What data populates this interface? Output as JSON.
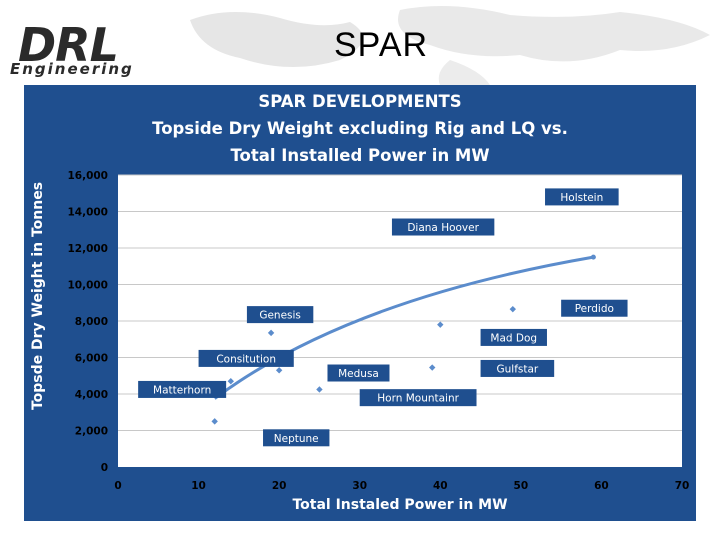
{
  "header": {
    "logo_primary": "DRL",
    "logo_secondary": "Engineering",
    "slide_title": "SPAR"
  },
  "chart_data": {
    "type": "scatter",
    "title_lines": [
      "SPAR  DEVELOPMENTS",
      "Topside Dry Weight excluding Rig and LQ vs.",
      "Total Installed Power in MW"
    ],
    "xlabel": "Total Instaled Power in MW",
    "ylabel": "Topsde Dry Weight in Tonnes",
    "xlim": [
      0,
      70
    ],
    "ylim": [
      0,
      16000
    ],
    "x_ticks": [
      "0",
      "10",
      "20",
      "30",
      "40",
      "50",
      "60",
      "70"
    ],
    "y_ticks": [
      "0",
      "2,000",
      "4,000",
      "6,000",
      "8,000",
      "10,000",
      "12,000",
      "14,000",
      "16,000"
    ],
    "grid": "horizontal",
    "points": [
      {
        "x": 12,
        "y": 4250
      },
      {
        "x": 12,
        "y": 2500
      },
      {
        "x": 14,
        "y": 4700
      },
      {
        "x": 17,
        "y": 5850
      },
      {
        "x": 19,
        "y": 7350
      },
      {
        "x": 20,
        "y": 5750
      },
      {
        "x": 20,
        "y": 5300
      },
      {
        "x": 25,
        "y": 4250
      },
      {
        "x": 39,
        "y": 5450
      },
      {
        "x": 40,
        "y": 7800
      },
      {
        "x": 40,
        "y": 13100
      },
      {
        "x": 49,
        "y": 8650
      },
      {
        "x": 59,
        "y": 14900
      }
    ],
    "trendline": {
      "x_start": 12,
      "x_end": 59,
      "y_start": 3750,
      "y_end": 11500,
      "curvature": 0.7
    },
    "annotations": [
      {
        "label": "Holstein",
        "x": 53,
        "y": 14800
      },
      {
        "label": "Diana Hoover",
        "x": 34,
        "y": 13150
      },
      {
        "label": "Perdido",
        "x": 55,
        "y": 8700
      },
      {
        "label": "Genesis",
        "x": 16,
        "y": 8350
      },
      {
        "label": "Mad Dog",
        "x": 45,
        "y": 7100
      },
      {
        "label": "Consitution",
        "x": 10,
        "y": 5950
      },
      {
        "label": "Gulfstar",
        "x": 45,
        "y": 5400
      },
      {
        "label": "Medusa",
        "x": 26,
        "y": 5150
      },
      {
        "label": "Matterhorn",
        "x": 2.5,
        "y": 4250
      },
      {
        "label": "Horn Mountainr",
        "x": 30,
        "y": 3800
      },
      {
        "label": "Neptune",
        "x": 18,
        "y": 1600
      }
    ],
    "colors": {
      "panel_background": "#1f4f8f",
      "plot_background": "#ffffff",
      "marker": "#5b8ccc",
      "trendline": "#5b8ccc",
      "label_box": "#1f4f8f",
      "label_text": "#ffffff",
      "axis_text": "#ffffff",
      "tick_text": "#000000",
      "gridline": "#c8c8c8"
    }
  }
}
